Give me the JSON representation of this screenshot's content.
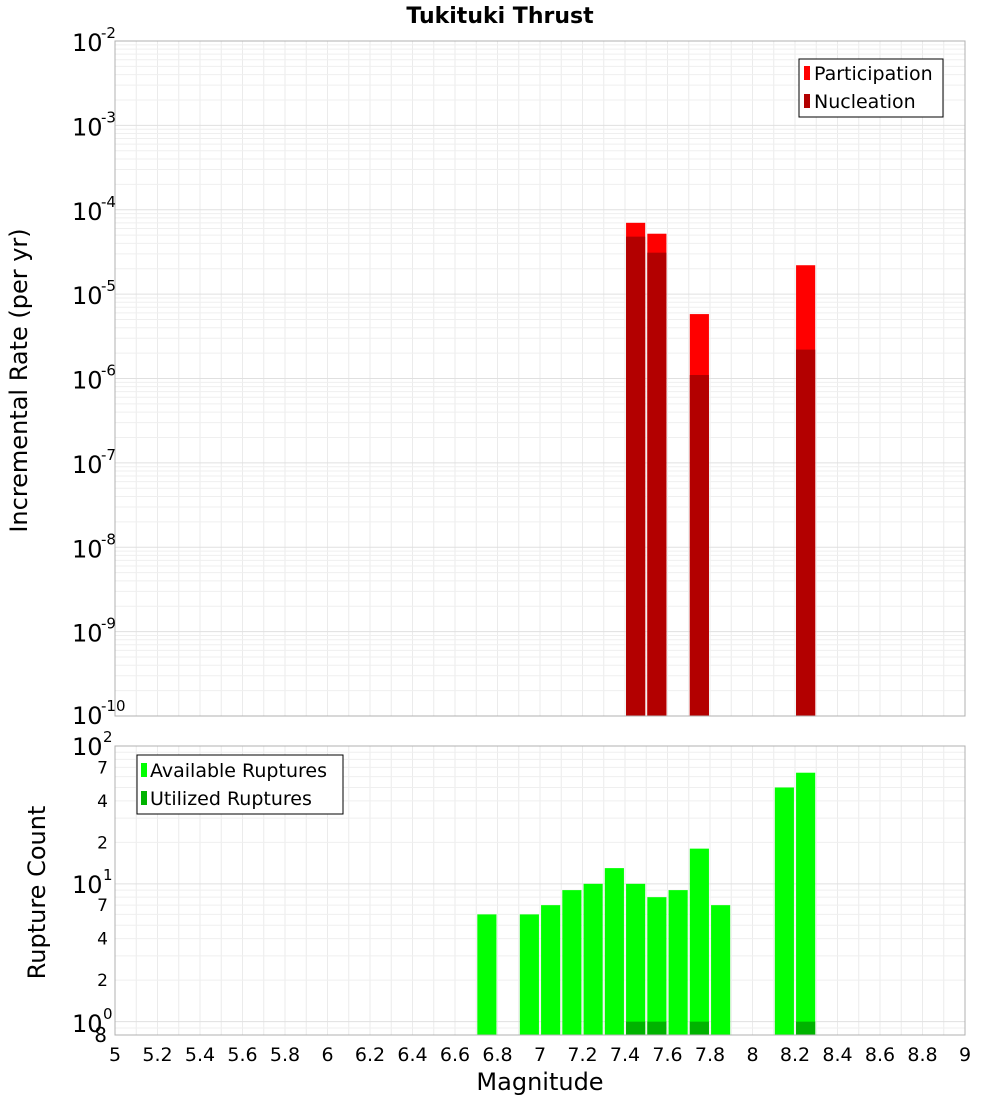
{
  "chart_data": [
    {
      "type": "bar",
      "title": "Tukituki Thrust",
      "xlabel": "",
      "ylabel": "Incremental Rate (per yr)",
      "yscale": "log",
      "ylim": [
        1e-10,
        0.01
      ],
      "xlim": [
        5,
        9
      ],
      "grid": true,
      "legend_position": "top-right",
      "y_ticks": [
        {
          "exp": "-10"
        },
        {
          "exp": "-9"
        },
        {
          "exp": "-8"
        },
        {
          "exp": "-7"
        },
        {
          "exp": "-6"
        },
        {
          "exp": "-5"
        },
        {
          "exp": "-4"
        },
        {
          "exp": "-3"
        },
        {
          "exp": "-2"
        }
      ],
      "series": [
        {
          "name": "Participation",
          "color": "#ff0000",
          "x": [
            7.45,
            7.55,
            7.75,
            8.25
          ],
          "values": [
            7e-05,
            5.2e-05,
            5.8e-06,
            2.2e-05
          ]
        },
        {
          "name": "Nucleation",
          "color": "#b30000",
          "x": [
            7.45,
            7.55,
            7.75,
            8.25
          ],
          "values": [
            4.8e-05,
            3.1e-05,
            1.1e-06,
            2.2e-06
          ]
        }
      ]
    },
    {
      "type": "bar",
      "title": "",
      "xlabel": "Magnitude",
      "ylabel": "Rupture Count",
      "yscale": "log",
      "ylim": [
        0.8,
        100
      ],
      "xlim": [
        5,
        9
      ],
      "grid": true,
      "legend_position": "top-left",
      "y_major_ticks": [
        {
          "base": "10",
          "exp": "0"
        },
        {
          "base": "10",
          "exp": "1"
        },
        {
          "base": "10",
          "exp": "2"
        }
      ],
      "y_minor_ticks": [
        "8",
        "2",
        "4",
        "7",
        "2",
        "4",
        "7"
      ],
      "x_ticks": [
        "5",
        "5.2",
        "5.4",
        "5.6",
        "5.8",
        "6",
        "6.2",
        "6.4",
        "6.6",
        "6.8",
        "7",
        "7.2",
        "7.4",
        "7.6",
        "7.8",
        "8",
        "8.2",
        "8.4",
        "8.6",
        "8.8",
        "9"
      ],
      "series": [
        {
          "name": "Available Ruptures",
          "color": "#00ff00",
          "x": [
            6.75,
            6.95,
            7.05,
            7.15,
            7.25,
            7.35,
            7.45,
            7.55,
            7.65,
            7.75,
            7.85,
            8.15,
            8.25
          ],
          "values": [
            6,
            6,
            7,
            9,
            10,
            13,
            10,
            8,
            9,
            18,
            7,
            50,
            64
          ]
        },
        {
          "name": "Utilized Ruptures",
          "color": "#00b300",
          "x": [
            7.45,
            7.55,
            7.75,
            8.25
          ],
          "values": [
            1,
            1,
            1,
            1
          ]
        }
      ]
    }
  ]
}
